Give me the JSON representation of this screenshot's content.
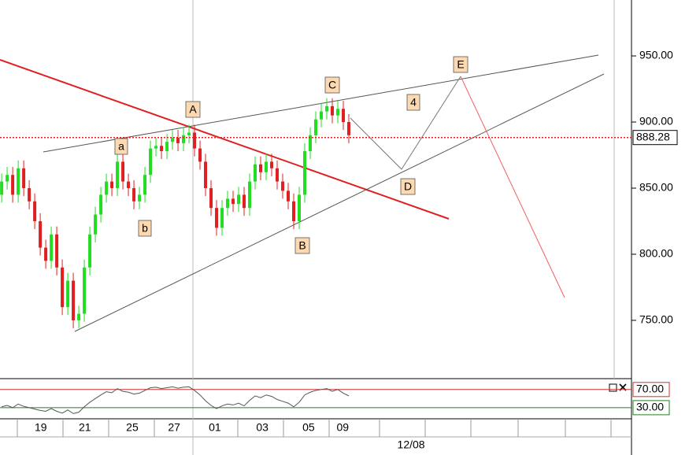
{
  "chart_data": {
    "type": "candlestick",
    "open": [
      845,
      855,
      860,
      845,
      865,
      850,
      840,
      825,
      805,
      795,
      815,
      790,
      760,
      780,
      750,
      755,
      790,
      815,
      830,
      845,
      855,
      850,
      870,
      855,
      850,
      840,
      845,
      860,
      880,
      882,
      878,
      885,
      888,
      884,
      890,
      892,
      880,
      870,
      850,
      835,
      820,
      835,
      842,
      838,
      845,
      835,
      855,
      868,
      862,
      870,
      865,
      855,
      848,
      840,
      825,
      845,
      878,
      890,
      902,
      908,
      912,
      905,
      910,
      900
    ],
    "high": [
      861,
      866,
      866,
      871,
      871,
      856,
      846,
      831,
      811,
      821,
      821,
      796,
      786,
      786,
      761,
      796,
      821,
      836,
      851,
      861,
      861,
      876,
      876,
      861,
      856,
      851,
      866,
      886,
      888,
      888,
      891,
      894,
      894,
      896,
      898,
      898,
      886,
      876,
      856,
      841,
      841,
      848,
      848,
      851,
      851,
      861,
      874,
      874,
      876,
      876,
      871,
      861,
      854,
      846,
      851,
      884,
      896,
      908,
      914,
      918,
      918,
      916,
      916,
      906
    ],
    "low": [
      839,
      849,
      839,
      839,
      844,
      834,
      819,
      799,
      789,
      789,
      784,
      754,
      754,
      744,
      744,
      749,
      784,
      809,
      824,
      839,
      844,
      844,
      849,
      844,
      834,
      834,
      839,
      854,
      874,
      872,
      872,
      879,
      878,
      878,
      884,
      874,
      864,
      844,
      829,
      814,
      814,
      829,
      832,
      832,
      829,
      829,
      849,
      856,
      856,
      859,
      849,
      842,
      834,
      819,
      819,
      839,
      872,
      884,
      896,
      902,
      899,
      899,
      894,
      884
    ],
    "close": [
      855,
      860,
      845,
      865,
      850,
      840,
      825,
      805,
      795,
      815,
      790,
      760,
      780,
      750,
      755,
      790,
      815,
      830,
      845,
      855,
      850,
      870,
      855,
      850,
      840,
      845,
      860,
      880,
      882,
      878,
      885,
      888,
      884,
      890,
      892,
      880,
      870,
      850,
      835,
      820,
      835,
      842,
      838,
      845,
      835,
      855,
      868,
      862,
      870,
      865,
      855,
      848,
      840,
      825,
      845,
      878,
      890,
      902,
      908,
      912,
      905,
      910,
      900,
      890
    ],
    "up_color": "#22dd22",
    "down_color": "#e02020",
    "xlim": [
      -0.3,
      114.3
    ],
    "ylim": [
      706.5,
      992.3
    ],
    "yticks": [
      {
        "value": 750,
        "label": "750.00"
      },
      {
        "value": 800,
        "label": "800.00"
      },
      {
        "value": 850,
        "label": "850.00"
      },
      {
        "value": 900,
        "label": "900.00"
      },
      {
        "value": 950,
        "label": "950.00"
      }
    ],
    "xticks": [
      {
        "value": 7.1,
        "label": "19"
      },
      {
        "value": 15.1,
        "label": "21"
      },
      {
        "value": 23.7,
        "label": "25"
      },
      {
        "value": 31.3,
        "label": "27"
      },
      {
        "value": 38.7,
        "label": "01"
      },
      {
        "value": 47.3,
        "label": "03"
      },
      {
        "value": 55.7,
        "label": "05"
      },
      {
        "value": 61.9,
        "label": "09"
      }
    ],
    "xticks2": [
      {
        "value": 74.3,
        "label": "12/08"
      }
    ],
    "last_price": 888.28,
    "annotations": [
      "a",
      "b",
      "A",
      "B",
      "C",
      "4",
      "D",
      "E"
    ],
    "rsi": {
      "values": [
        32,
        35,
        30,
        38,
        33,
        30,
        27,
        24,
        22,
        28,
        22,
        18,
        25,
        17,
        20,
        32,
        42,
        50,
        58,
        65,
        63,
        72,
        66,
        64,
        60,
        62,
        68,
        74,
        75,
        72,
        74,
        76,
        73,
        75,
        76,
        68,
        58,
        45,
        35,
        28,
        34,
        38,
        36,
        40,
        34,
        46,
        56,
        52,
        58,
        55,
        48,
        44,
        40,
        32,
        42,
        58,
        64,
        68,
        70,
        72,
        66,
        70,
        62,
        56
      ],
      "ylim": [
        9,
        87
      ],
      "yticks": [
        {
          "value": 70,
          "label": "70.00",
          "color": "#d03030"
        },
        {
          "value": 30,
          "label": "30.00",
          "color": "#208020"
        }
      ]
    }
  }
}
